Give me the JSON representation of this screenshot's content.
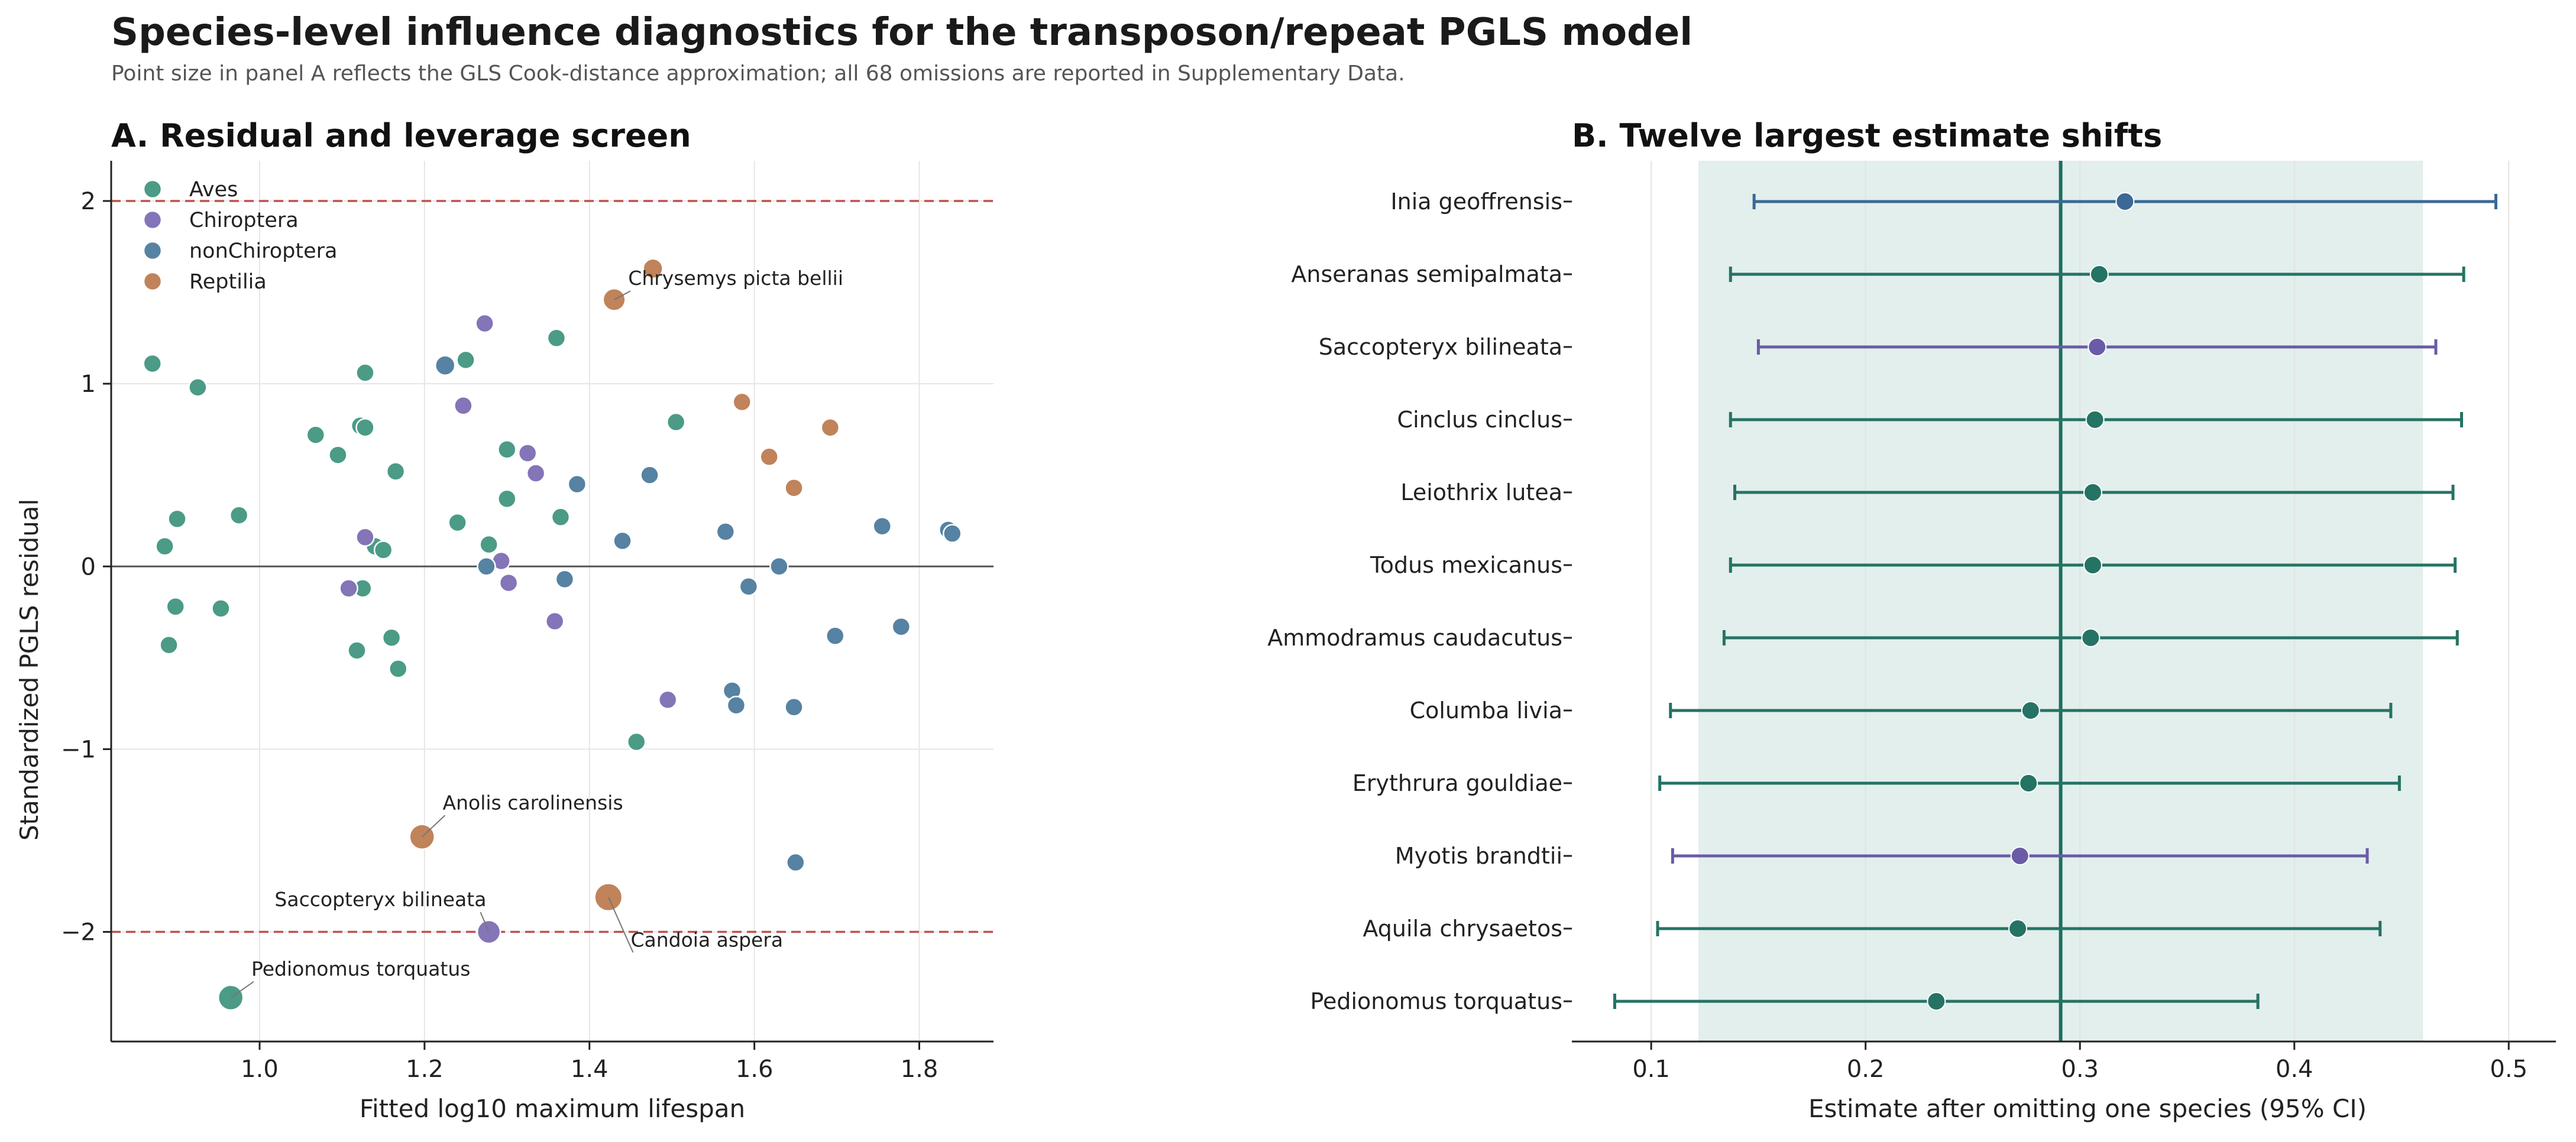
{
  "title": "Species-level influence diagnostics for the transposon/repeat PGLS model",
  "subtitle": "Point size in panel A reflects the GLS Cook-distance approximation; all 68 omissions are reported in Supplementary Data.",
  "colors": {
    "Aves": "#4b9b86",
    "Chiroptera": "#8474b8",
    "nonChiroptera": "#5682a3",
    "Reptilia": "#c0835a",
    "threshold_line": "#c0504d",
    "ci_band": "#e2efec",
    "reference_line": "#1f6f60",
    "aves_point": "#257364",
    "chiroptera_point": "#6a5ba7",
    "nonchiroptera_point": "#3c6896"
  },
  "chart_data": [
    {
      "type": "scatter",
      "title": "A. Residual and leverage screen",
      "xlabel": "Fitted log10 maximum lifespan",
      "ylabel": "Standardized PGLS residual",
      "xlim": [
        0.82,
        1.89
      ],
      "ylim": [
        -2.6,
        2.22
      ],
      "xticks": [
        "1.0",
        "1.2",
        "1.4",
        "1.6",
        "1.8"
      ],
      "yticks": [
        "−2",
        "−1",
        "0",
        "1",
        "2"
      ],
      "threshold_lines": [
        2,
        -2
      ],
      "zero_line": 0,
      "grid": true,
      "legend_position": "top-left",
      "legend": [
        "Aves",
        "Chiroptera",
        "nonChiroptera",
        "Reptilia"
      ],
      "points": [
        {
          "x": 0.87,
          "y": 1.11,
          "g": "Aves",
          "s": 1
        },
        {
          "x": 0.925,
          "y": 0.98,
          "g": "Aves",
          "s": 1
        },
        {
          "x": 0.885,
          "y": 0.11,
          "g": "Aves",
          "s": 1
        },
        {
          "x": 0.9,
          "y": 0.26,
          "g": "Aves",
          "s": 1
        },
        {
          "x": 0.975,
          "y": 0.28,
          "g": "Aves",
          "s": 1
        },
        {
          "x": 0.898,
          "y": -0.22,
          "g": "Aves",
          "s": 1
        },
        {
          "x": 0.953,
          "y": -0.23,
          "g": "Aves",
          "s": 1
        },
        {
          "x": 0.89,
          "y": -0.43,
          "g": "Aves",
          "s": 1
        },
        {
          "x": 1.068,
          "y": 0.72,
          "g": "Aves",
          "s": 1
        },
        {
          "x": 1.095,
          "y": 0.61,
          "g": "Aves",
          "s": 1
        },
        {
          "x": 1.122,
          "y": 0.77,
          "g": "Aves",
          "s": 1
        },
        {
          "x": 1.128,
          "y": 0.76,
          "g": "Aves",
          "s": 1
        },
        {
          "x": 1.128,
          "y": 1.06,
          "g": "Aves",
          "s": 1
        },
        {
          "x": 1.165,
          "y": 0.52,
          "g": "Aves",
          "s": 1
        },
        {
          "x": 1.14,
          "y": 0.11,
          "g": "Aves",
          "s": 1
        },
        {
          "x": 1.15,
          "y": 0.09,
          "g": "Aves",
          "s": 1
        },
        {
          "x": 1.125,
          "y": -0.12,
          "g": "Aves",
          "s": 1
        },
        {
          "x": 1.16,
          "y": -0.39,
          "g": "Aves",
          "s": 1
        },
        {
          "x": 1.118,
          "y": -0.46,
          "g": "Aves",
          "s": 1
        },
        {
          "x": 1.168,
          "y": -0.56,
          "g": "Aves",
          "s": 1
        },
        {
          "x": 1.24,
          "y": 0.24,
          "g": "Aves",
          "s": 1
        },
        {
          "x": 1.25,
          "y": 1.13,
          "g": "Aves",
          "s": 1
        },
        {
          "x": 1.278,
          "y": 0.12,
          "g": "Aves",
          "s": 1
        },
        {
          "x": 1.3,
          "y": 0.64,
          "g": "Aves",
          "s": 1
        },
        {
          "x": 1.3,
          "y": 0.37,
          "g": "Aves",
          "s": 1
        },
        {
          "x": 1.36,
          "y": 1.25,
          "g": "Aves",
          "s": 1
        },
        {
          "x": 1.365,
          "y": 0.27,
          "g": "Aves",
          "s": 1
        },
        {
          "x": 1.505,
          "y": 0.79,
          "g": "Aves",
          "s": 1
        },
        {
          "x": 1.457,
          "y": -0.96,
          "g": "Aves",
          "s": 1
        },
        {
          "x": 0.965,
          "y": -2.36,
          "g": "Aves",
          "s": 1.4
        },
        {
          "x": 1.273,
          "y": 1.33,
          "g": "Chiroptera",
          "s": 1
        },
        {
          "x": 1.247,
          "y": 0.88,
          "g": "Chiroptera",
          "s": 1
        },
        {
          "x": 1.325,
          "y": 0.62,
          "g": "Chiroptera",
          "s": 1
        },
        {
          "x": 1.335,
          "y": 0.51,
          "g": "Chiroptera",
          "s": 1
        },
        {
          "x": 1.128,
          "y": 0.16,
          "g": "Chiroptera",
          "s": 1
        },
        {
          "x": 1.108,
          "y": -0.12,
          "g": "Chiroptera",
          "s": 1
        },
        {
          "x": 1.293,
          "y": 0.03,
          "g": "Chiroptera",
          "s": 1
        },
        {
          "x": 1.302,
          "y": -0.09,
          "g": "Chiroptera",
          "s": 1
        },
        {
          "x": 1.358,
          "y": -0.3,
          "g": "Chiroptera",
          "s": 1
        },
        {
          "x": 1.495,
          "y": -0.73,
          "g": "Chiroptera",
          "s": 1
        },
        {
          "x": 1.278,
          "y": -2.0,
          "g": "Chiroptera",
          "s": 1.3
        },
        {
          "x": 1.225,
          "y": 1.1,
          "g": "nonChiroptera",
          "s": 1.1
        },
        {
          "x": 1.385,
          "y": 0.45,
          "g": "nonChiroptera",
          "s": 1
        },
        {
          "x": 1.473,
          "y": 0.5,
          "g": "nonChiroptera",
          "s": 1
        },
        {
          "x": 1.44,
          "y": 0.14,
          "g": "nonChiroptera",
          "s": 1
        },
        {
          "x": 1.565,
          "y": 0.19,
          "g": "nonChiroptera",
          "s": 1
        },
        {
          "x": 1.275,
          "y": 0.0,
          "g": "nonChiroptera",
          "s": 1
        },
        {
          "x": 1.37,
          "y": -0.07,
          "g": "nonChiroptera",
          "s": 1
        },
        {
          "x": 1.593,
          "y": -0.11,
          "g": "nonChiroptera",
          "s": 1
        },
        {
          "x": 1.63,
          "y": 0.0,
          "g": "nonChiroptera",
          "s": 1
        },
        {
          "x": 1.755,
          "y": 0.22,
          "g": "nonChiroptera",
          "s": 1
        },
        {
          "x": 1.835,
          "y": 0.2,
          "g": "nonChiroptera",
          "s": 1
        },
        {
          "x": 1.84,
          "y": 0.18,
          "g": "nonChiroptera",
          "s": 1
        },
        {
          "x": 1.698,
          "y": -0.38,
          "g": "nonChiroptera",
          "s": 1
        },
        {
          "x": 1.778,
          "y": -0.33,
          "g": "nonChiroptera",
          "s": 1
        },
        {
          "x": 1.573,
          "y": -0.68,
          "g": "nonChiroptera",
          "s": 1
        },
        {
          "x": 1.578,
          "y": -0.76,
          "g": "nonChiroptera",
          "s": 1
        },
        {
          "x": 1.648,
          "y": -0.77,
          "g": "nonChiroptera",
          "s": 1
        },
        {
          "x": 1.65,
          "y": -1.62,
          "g": "nonChiroptera",
          "s": 1
        },
        {
          "x": 1.477,
          "y": 1.63,
          "g": "Reptilia",
          "s": 1.1
        },
        {
          "x": 1.43,
          "y": 1.46,
          "g": "Reptilia",
          "s": 1.25
        },
        {
          "x": 1.585,
          "y": 0.9,
          "g": "Reptilia",
          "s": 1
        },
        {
          "x": 1.692,
          "y": 0.76,
          "g": "Reptilia",
          "s": 1
        },
        {
          "x": 1.618,
          "y": 0.6,
          "g": "Reptilia",
          "s": 1
        },
        {
          "x": 1.648,
          "y": 0.43,
          "g": "Reptilia",
          "s": 1
        },
        {
          "x": 1.197,
          "y": -1.48,
          "g": "Reptilia",
          "s": 1.4
        },
        {
          "x": 1.423,
          "y": -1.81,
          "g": "Reptilia",
          "s": 1.55
        }
      ],
      "annotations": [
        {
          "text": "Chrysemys picta bellii",
          "x": 1.43,
          "y": 1.46,
          "tx": 1.447,
          "ty": 1.54,
          "anchor": "start"
        },
        {
          "text": "Anolis carolinensis",
          "x": 1.197,
          "y": -1.48,
          "tx": 1.222,
          "ty": -1.33,
          "anchor": "start"
        },
        {
          "text": "Saccopteryx bilineata",
          "x": 1.278,
          "y": -2.0,
          "tx": 1.275,
          "ty": -1.86,
          "anchor": "end"
        },
        {
          "text": "Candoia aspera",
          "x": 1.423,
          "y": -1.81,
          "tx": 1.45,
          "ty": -2.08,
          "anchor": "start"
        },
        {
          "text": "Pedionomus torquatus",
          "x": 0.965,
          "y": -2.36,
          "tx": 0.99,
          "ty": -2.24,
          "anchor": "start"
        }
      ]
    },
    {
      "type": "forest",
      "title": "B. Twelve largest estimate shifts",
      "xlabel": "Estimate after omitting one species (95% CI)",
      "xlim": [
        0.063,
        0.522
      ],
      "xticks": [
        0.1,
        0.2,
        0.3,
        0.4,
        0.5
      ],
      "xtick_labels": [
        "0.1",
        "0.2",
        "0.3",
        "0.4",
        "0.5"
      ],
      "reference_estimate": 0.291,
      "reference_ci": [
        0.122,
        0.46
      ],
      "grid": true,
      "rows": [
        {
          "species": "Inia geoffrensis",
          "group": "nonChiroptera",
          "estimate": 0.321,
          "lower": 0.148,
          "upper": 0.494
        },
        {
          "species": "Anseranas semipalmata",
          "group": "Aves",
          "estimate": 0.309,
          "lower": 0.137,
          "upper": 0.479
        },
        {
          "species": "Saccopteryx bilineata",
          "group": "Chiroptera",
          "estimate": 0.308,
          "lower": 0.15,
          "upper": 0.466
        },
        {
          "species": "Cinclus cinclus",
          "group": "Aves",
          "estimate": 0.307,
          "lower": 0.137,
          "upper": 0.478
        },
        {
          "species": "Leiothrix lutea",
          "group": "Aves",
          "estimate": 0.306,
          "lower": 0.139,
          "upper": 0.474
        },
        {
          "species": "Todus mexicanus",
          "group": "Aves",
          "estimate": 0.306,
          "lower": 0.137,
          "upper": 0.475
        },
        {
          "species": "Ammodramus caudacutus",
          "group": "Aves",
          "estimate": 0.305,
          "lower": 0.134,
          "upper": 0.476
        },
        {
          "species": "Columba livia",
          "group": "Aves",
          "estimate": 0.277,
          "lower": 0.109,
          "upper": 0.445
        },
        {
          "species": "Erythrura gouldiae",
          "group": "Aves",
          "estimate": 0.276,
          "lower": 0.104,
          "upper": 0.449
        },
        {
          "species": "Myotis brandtii",
          "group": "Chiroptera",
          "estimate": 0.272,
          "lower": 0.11,
          "upper": 0.434
        },
        {
          "species": "Aquila chrysaetos",
          "group": "Aves",
          "estimate": 0.271,
          "lower": 0.103,
          "upper": 0.44
        },
        {
          "species": "Pedionomus torquatus",
          "group": "Aves",
          "estimate": 0.233,
          "lower": 0.083,
          "upper": 0.383
        }
      ]
    }
  ]
}
